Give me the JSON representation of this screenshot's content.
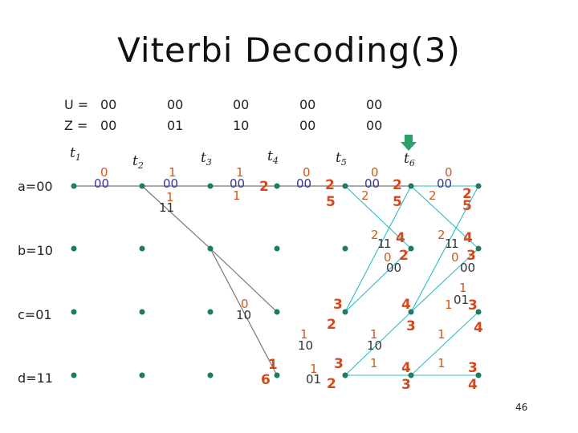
{
  "title": "Viterbi Decoding(3)",
  "page_number": "46",
  "sequences": {
    "u_label": "U =",
    "z_label": "Z =",
    "u": [
      "00",
      "00",
      "00",
      "00",
      "00"
    ],
    "z": [
      "00",
      "01",
      "10",
      "00",
      "00"
    ]
  },
  "times": [
    "t",
    "t",
    "t",
    "t",
    "t",
    "t"
  ],
  "time_subs": [
    "1",
    "2",
    "3",
    "4",
    "5",
    "6"
  ],
  "state_labels": [
    "a=00",
    "b=10",
    "c=01",
    "d=11"
  ],
  "colors": {
    "trellis_line": "#777777",
    "survivor_line": "#2bbcc8",
    "node": "#1f7a60",
    "arrow": "#2aa36b",
    "metric": "#d2491c",
    "branch_out": "#3a3a9a",
    "branch_in": "#d05a1a"
  },
  "annotations": {
    "a_t1_in": "0",
    "a_t1_out": "00",
    "a_t2_in": "1",
    "a_t2_out": "00",
    "a_t2_alt_in": "1",
    "a_t2_alt_out": "11",
    "a_t3_in": "1",
    "a_t3_out": "00",
    "a_t3_alt": "1",
    "a_t4_metric": "2",
    "a_t4_in": "0",
    "a_t4_out": "00",
    "a_t5_m1": "2",
    "a_t5_m2": "5",
    "a_t5_in": "0",
    "a_t5_out": "00",
    "a_t5_alt": "2",
    "a_t6_m1": "2",
    "a_t6_m2": "5",
    "a_t6_in": "0",
    "a_t6_out": "00",
    "a_t6_alt": "2",
    "a_t7_m1": "2",
    "a_t7_m2": "5",
    "b_t5_in": "2",
    "b_t5_in2": "1",
    "b_t5_in3": "1",
    "b_t6_m1": "4",
    "b_t5_c": "0",
    "b_t6_m2": "2",
    "b_t6_out": "00",
    "b_t6_in": "2",
    "b_t6_in2": "1",
    "b_t6_in3": "1",
    "b_t7_m1": "4",
    "b_t6_c": "0",
    "b_t7_m2": "3",
    "b_t7_out": "00",
    "c_t3_in": "0",
    "c_t3_out": "10",
    "c_t5_m1": "3",
    "c_t5_m2": "2",
    "c_t4_in": "1",
    "c_t4_out": "10",
    "c_t6_m1": "4",
    "c_t6_m2": "3",
    "c_t5_in": "1",
    "c_t5_out": "10",
    "c_t7_top": "1",
    "c_t7_a": "1",
    "c_t7_b": "01",
    "c_t7_m1": "3",
    "c_t7_alt": "1",
    "c_t7_m2": "4",
    "d_t4_in": "1",
    "d_t4_m": "6",
    "d_t4_alt": "1",
    "d_t4_out": "01",
    "d_t5_m1": "3",
    "d_t5_m2": "2",
    "d_t5_in": "1",
    "d_t6_m1": "4",
    "d_t6_m2": "3",
    "d_t6_in": "1",
    "d_t7_m1": "3",
    "d_t7_m2": "4"
  }
}
